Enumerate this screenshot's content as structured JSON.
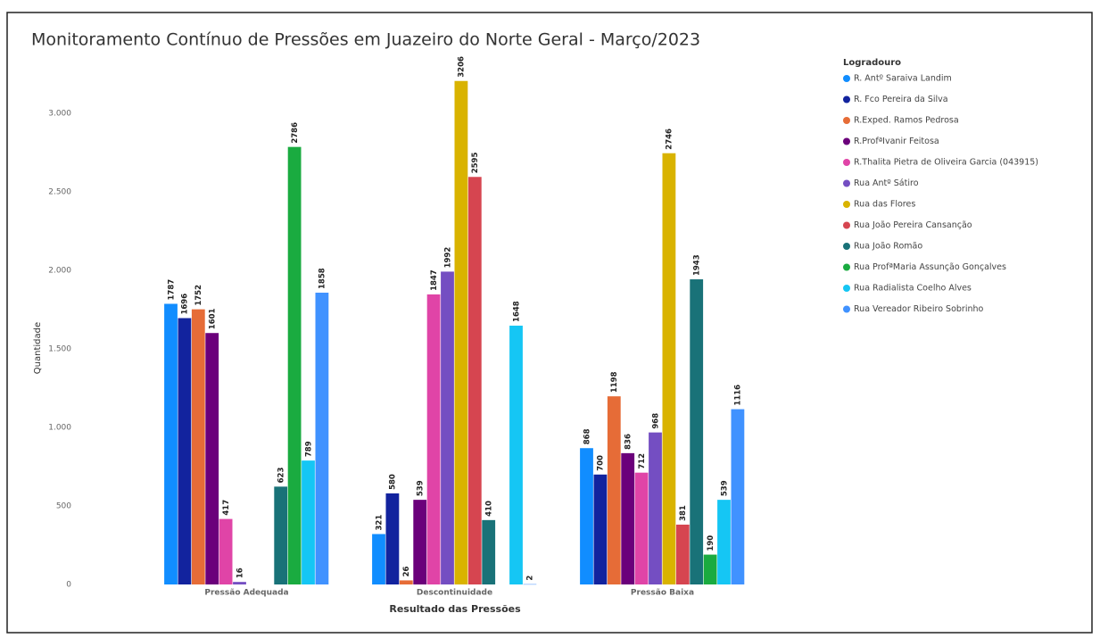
{
  "chart_data": {
    "type": "bar",
    "title": "Monitoramento Contínuo de Pressões em Juazeiro do Norte Geral - Março/2023",
    "x_label": "Resultado das Pressões",
    "y_label": "Quantidade",
    "legend_title": "Logradouro",
    "categories": [
      "Pressão Adequada",
      "Descontinuidade",
      "Pressão Baixa"
    ],
    "series": [
      {
        "name": "R. Antº Saraiva Landim",
        "color": "#118DFF",
        "values": [
          1787,
          321,
          868
        ]
      },
      {
        "name": "R. Fco Pereira da Silva",
        "color": "#12239E",
        "values": [
          1696,
          580,
          700
        ]
      },
      {
        "name": "R.Exped. Ramos Pedrosa",
        "color": "#E66C37",
        "values": [
          1752,
          26,
          1198
        ]
      },
      {
        "name": "R.ProfªIvanir Feitosa",
        "color": "#6B007B",
        "values": [
          1601,
          539,
          836
        ]
      },
      {
        "name": "R.Thalita Pietra de Oliveira Garcia (043915)",
        "color": "#E044A7",
        "values": [
          417,
          1847,
          712
        ]
      },
      {
        "name": "Rua Antº Sátiro",
        "color": "#744EC2",
        "values": [
          16,
          1992,
          968
        ]
      },
      {
        "name": "Rua das Flores",
        "color": "#D9B300",
        "values": [
          null,
          3206,
          2746
        ]
      },
      {
        "name": "Rua João Pereira Cansanção",
        "color": "#D64550",
        "values": [
          null,
          2595,
          381
        ]
      },
      {
        "name": "Rua João Romão",
        "color": "#197278",
        "values": [
          623,
          410,
          1943
        ]
      },
      {
        "name": "Rua ProfªMaria Assunção Gonçalves",
        "color": "#1AAB40",
        "values": [
          2786,
          null,
          190
        ]
      },
      {
        "name": "Rua Radialista Coelho Alves",
        "color": "#15C6F4",
        "values": [
          789,
          1648,
          539
        ]
      },
      {
        "name": "Rua Vereador Ribeiro Sobrinho",
        "color": "#4092FF",
        "values": [
          1858,
          2,
          1116
        ]
      }
    ],
    "ylim": [
      0,
      3300
    ],
    "yticks": [
      0,
      500,
      {
        "value": 1000,
        "label": "1.000"
      },
      {
        "value": 1500,
        "label": "1.500"
      },
      {
        "value": 2000,
        "label": "2.000"
      },
      {
        "value": 2500,
        "label": "2.500"
      },
      {
        "value": 3000,
        "label": "3.000"
      }
    ],
    "legend": "right",
    "grid": false
  }
}
